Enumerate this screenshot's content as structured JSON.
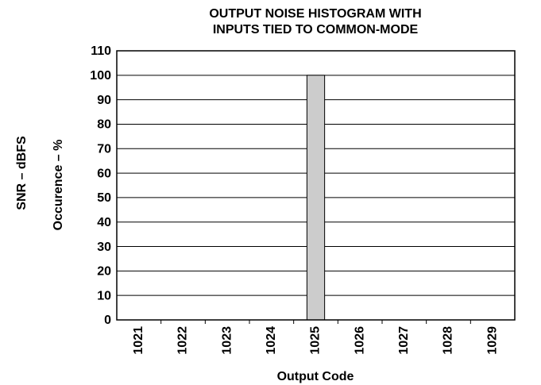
{
  "chart_data": {
    "type": "bar",
    "title": [
      "OUTPUT NOISE HISTOGRAM WITH",
      "INPUTS TIED TO COMMON-MODE"
    ],
    "annotations": [
      "SNR – dBFS"
    ],
    "ylabel": "Occurence – %",
    "xlabel": "Output Code",
    "categories": [
      "1021",
      "1022",
      "1023",
      "1024",
      "1025",
      "1026",
      "1027",
      "1028",
      "1029"
    ],
    "values": [
      0,
      0,
      0,
      0,
      100,
      0,
      0,
      0,
      0
    ],
    "color": "#cccccc",
    "ylim": [
      0,
      110
    ],
    "yticks": [
      0,
      10,
      20,
      30,
      40,
      50,
      60,
      70,
      80,
      90,
      100,
      110
    ],
    "grid": true
  }
}
